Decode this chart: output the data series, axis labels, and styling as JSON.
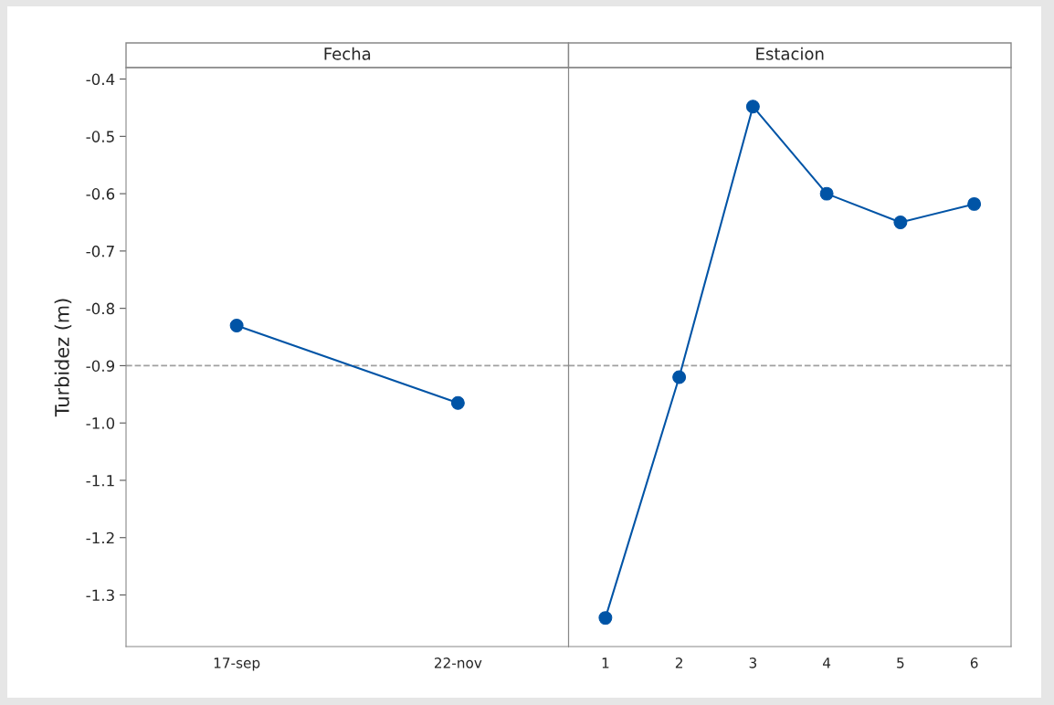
{
  "chart_data": [
    {
      "type": "line",
      "title": "Fecha",
      "ylabel": "Turbidez (m)",
      "categories": [
        "17-sep",
        "22-nov"
      ],
      "series": [
        {
          "color": "#0054a6",
          "values": [
            -0.83,
            -0.965
          ]
        }
      ],
      "ylim": [
        -1.39,
        -0.38
      ],
      "yticks": [
        {
          "value": -1.3,
          "label": "-1.3"
        },
        {
          "value": -1.2,
          "label": "-1.2"
        },
        {
          "value": -1.1,
          "label": "-1.1"
        },
        {
          "value": -1.0,
          "label": "-1.0"
        },
        {
          "value": -0.9,
          "label": "-0.9"
        },
        {
          "value": -0.8,
          "label": "-0.8"
        },
        {
          "value": -0.7,
          "label": "-0.7"
        },
        {
          "value": -0.6,
          "label": "-0.6"
        },
        {
          "value": -0.5,
          "label": "-0.5"
        },
        {
          "value": -0.4,
          "label": "-0.4"
        }
      ],
      "ref_lines": [
        {
          "axis": "y",
          "value": -0.9,
          "color": "#a0a0a0",
          "line_style": "dashed"
        }
      ],
      "marker": "circle",
      "line_style": "solid",
      "grid": false
    },
    {
      "type": "line",
      "title": "Estacion",
      "categories": [
        "1",
        "2",
        "3",
        "4",
        "5",
        "6"
      ],
      "series": [
        {
          "color": "#0054a6",
          "values": [
            -1.34,
            -0.92,
            -0.448,
            -0.6,
            -0.65,
            -0.618
          ]
        }
      ],
      "ylim": [
        -1.39,
        -0.38
      ],
      "tick_labels": "x",
      "ref_lines": [
        {
          "axis": "y",
          "value": -0.9,
          "color": "#a0a0a0",
          "line_style": "dashed"
        }
      ],
      "marker": "circle",
      "line_style": "solid",
      "grid": false
    }
  ]
}
